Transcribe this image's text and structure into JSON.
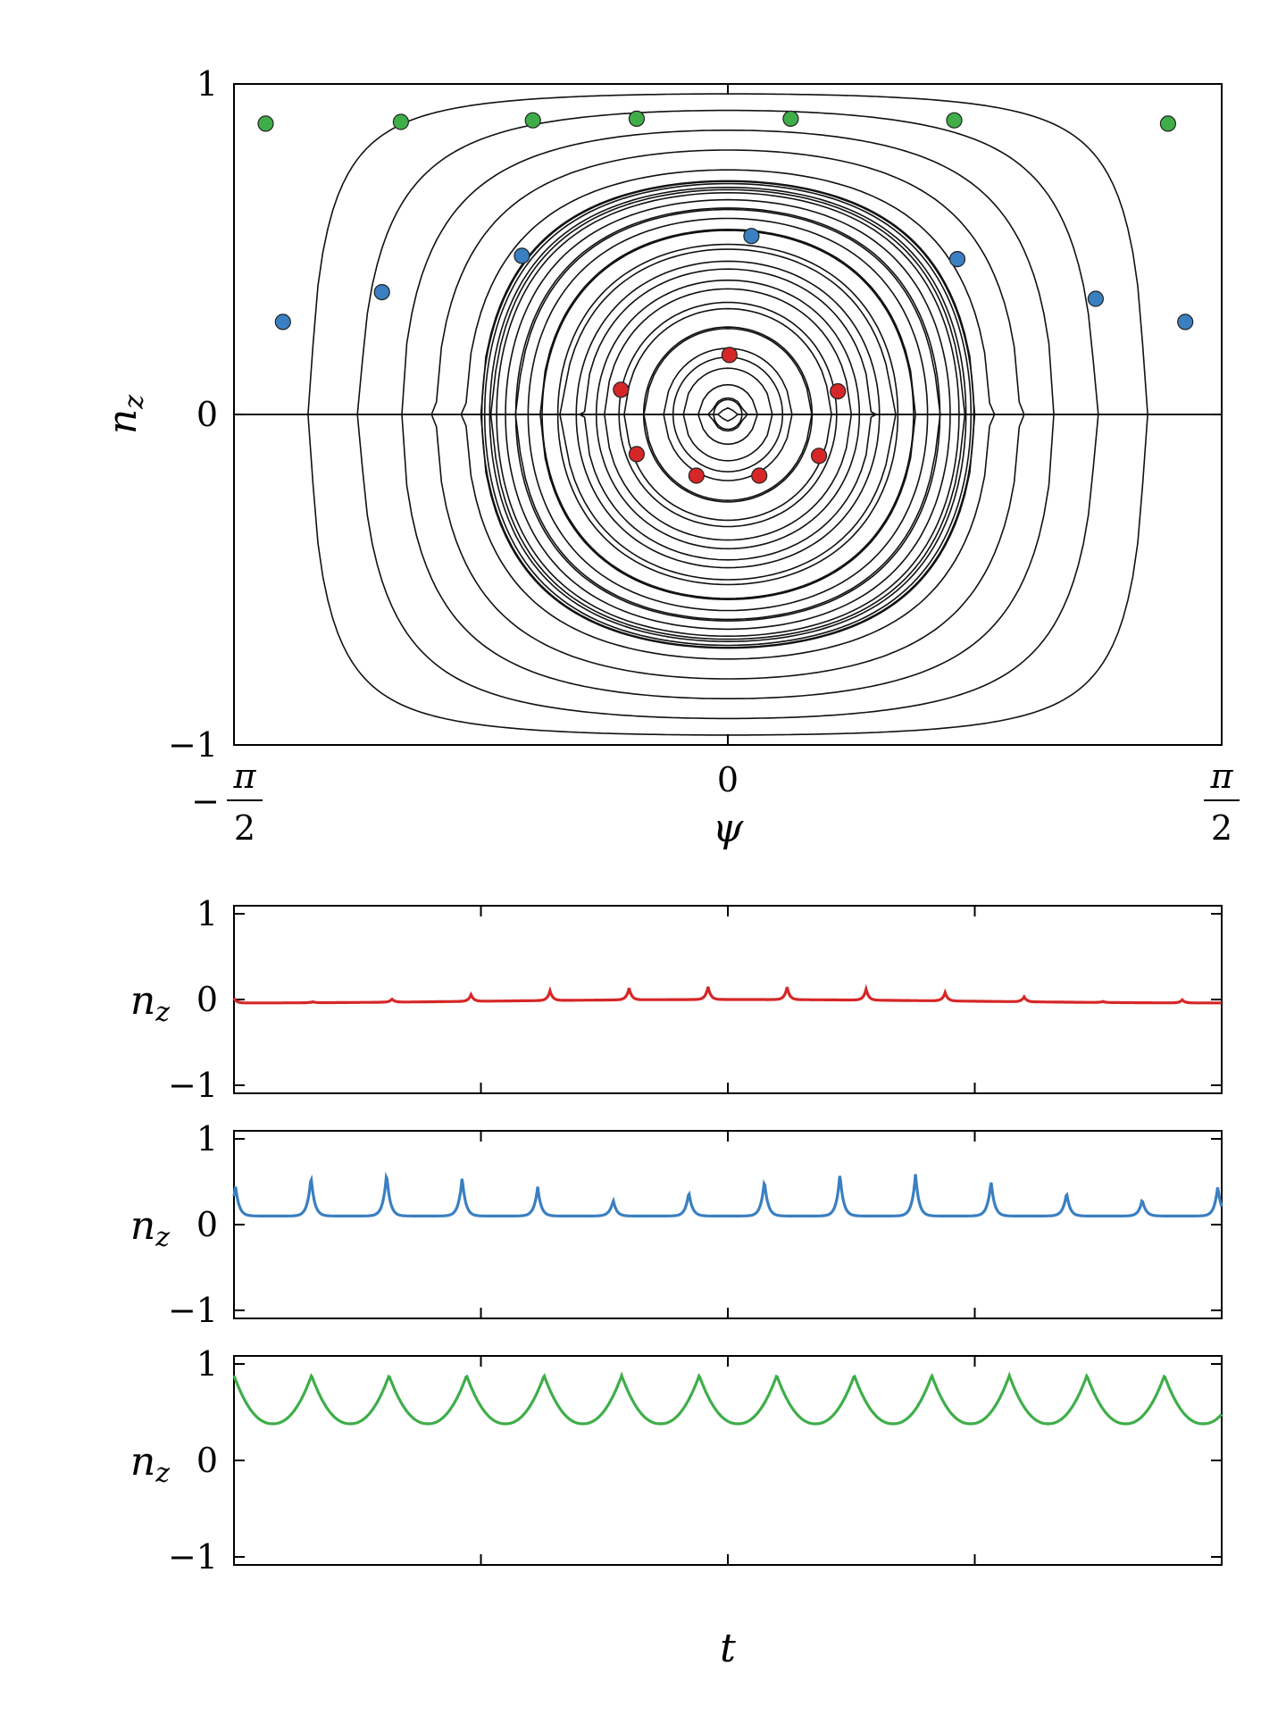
{
  "chart_data": [
    {
      "type": "scatter",
      "panel": "phase-portrait",
      "xlabel": "ψ",
      "ylabel": "n",
      "ylabel_sub": "z",
      "xlim": [
        -1.5708,
        1.5708
      ],
      "ylim": [
        -1,
        1
      ],
      "x_ticks": [
        {
          "value": -1.5708,
          "sign": "−",
          "num": "π",
          "den": "2"
        },
        {
          "value": 0,
          "label": "0"
        },
        {
          "value": 1.5708,
          "num": "π",
          "den": "2"
        }
      ],
      "y_ticks": [
        {
          "value": 1,
          "label": "1"
        },
        {
          "value": 0,
          "label": "0"
        },
        {
          "value": -1,
          "label": "−1"
        }
      ],
      "grid": false,
      "series": [
        {
          "color": "#d62728",
          "points": [
            [
              0.005,
              0.18
            ],
            [
              -0.34,
              0.075
            ],
            [
              0.35,
              0.07
            ],
            [
              -0.29,
              -0.12
            ],
            [
              0.29,
              -0.125
            ],
            [
              -0.1,
              -0.185
            ],
            [
              0.1,
              -0.185
            ]
          ]
        },
        {
          "color": "#3a7fc1",
          "points": [
            [
              -1.415,
              0.28
            ],
            [
              -1.1,
              0.37
            ],
            [
              -0.655,
              0.48
            ],
            [
              0.075,
              0.54
            ],
            [
              0.73,
              0.47
            ],
            [
              1.17,
              0.35
            ],
            [
              1.455,
              0.28
            ]
          ]
        },
        {
          "color": "#3fae49",
          "points": [
            [
              -1.47,
              0.88
            ],
            [
              -1.04,
              0.885
            ],
            [
              -0.62,
              0.89
            ],
            [
              -0.29,
              0.895
            ],
            [
              0.2,
              0.895
            ],
            [
              0.72,
              0.89
            ],
            [
              1.4,
              0.88
            ]
          ]
        }
      ]
    },
    {
      "type": "line",
      "panel": "time-series-red",
      "xlabel": "",
      "ylabel": "n",
      "ylabel_sub": "z",
      "ylim": [
        -1,
        1
      ],
      "y_ticks": [
        {
          "value": 1,
          "label": "1"
        },
        {
          "value": 0,
          "label": "0"
        },
        {
          "value": -1,
          "label": "−1"
        }
      ],
      "series": [
        {
          "color": "#d62728",
          "base": -0.02,
          "amp": 0.18,
          "kind": "red",
          "period": 0.08,
          "offset": 0.0
        }
      ]
    },
    {
      "type": "line",
      "panel": "time-series-blue",
      "xlabel": "",
      "ylabel": "n",
      "ylabel_sub": "z",
      "ylim": [
        -1,
        1
      ],
      "y_ticks": [
        {
          "value": 1,
          "label": "1"
        },
        {
          "value": 0,
          "label": "0"
        },
        {
          "value": -1,
          "label": "−1"
        }
      ],
      "series": [
        {
          "color": "#3a7fc1",
          "base": 0.08,
          "amp": 0.5,
          "kind": "blue",
          "period": 0.0765,
          "offset": 0.075
        }
      ]
    },
    {
      "type": "line",
      "panel": "time-series-green",
      "xlabel": "t",
      "ylabel": "n",
      "ylabel_sub": "z",
      "ylim": [
        -1,
        1
      ],
      "y_ticks": [
        {
          "value": 1,
          "label": "1"
        },
        {
          "value": 0,
          "label": "0"
        },
        {
          "value": -1,
          "label": "−1"
        }
      ],
      "series": [
        {
          "color": "#3fae49",
          "base": 0.38,
          "amp": 0.9,
          "kind": "green",
          "period": 0.0785,
          "offset": 0.0
        }
      ]
    }
  ]
}
